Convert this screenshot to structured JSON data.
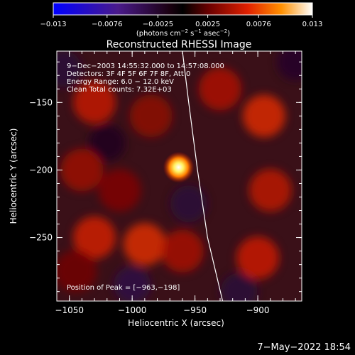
{
  "chart_data": {
    "type": "heatmap",
    "title": "Reconstructed RHESSI Image",
    "xlabel": "Heliocentric X (arcsec)",
    "ylabel": "Heliocentric Y (arcsec)",
    "xlim": [
      -1060,
      -865
    ],
    "ylim": [
      -297,
      -112
    ],
    "x_ticks": [
      -1050,
      -1000,
      -950,
      -900
    ],
    "x_tick_labels": [
      "−1050",
      "−1000",
      "−950",
      "−900"
    ],
    "y_ticks": [
      -150,
      -200,
      -250
    ],
    "y_tick_labels": [
      "−150",
      "−200",
      "−250"
    ],
    "colorbar": {
      "min": -0.013,
      "max": 0.013,
      "tick_values": [
        -0.013,
        -0.0076,
        -0.0025,
        0.0025,
        0.0076,
        0.013
      ],
      "tick_labels": [
        "−0.013",
        "−0.0076",
        "−0.0025",
        "0.0025",
        "0.0076",
        "0.013"
      ],
      "units_label": "(photons cm",
      "units_exp1": "−2",
      "units_mid": " s",
      "units_exp2": "−1",
      "units_end": " asec",
      "units_exp3": "−2",
      "units_close": ")"
    },
    "annotations": [
      "9−Dec−2003 14:55:32.000 to 14:57:08.000",
      "Detectors: 3F 4F 5F 6F 7F 8F, Att 0",
      "Energy Range: 6.0 − 12.0 keV",
      "Clean    Total counts: 7.32E+03"
    ],
    "peak_label": "Position of Peak = [−963,−198]",
    "peak": {
      "x": -963,
      "y": -198,
      "value": 0.013
    },
    "limb_curve": [
      {
        "x": -960,
        "y": -112
      },
      {
        "x": -955,
        "y": -150
      },
      {
        "x": -948,
        "y": -200
      },
      {
        "x": -940,
        "y": -250
      },
      {
        "x": -928,
        "y": -297
      }
    ],
    "background_blobs": [
      {
        "x": -1030,
        "y": -150,
        "value": 0.0058
      },
      {
        "x": -1040,
        "y": -200,
        "value": 0.0045
      },
      {
        "x": -1030,
        "y": -250,
        "value": 0.0062
      },
      {
        "x": -990,
        "y": -255,
        "value": 0.007
      },
      {
        "x": -985,
        "y": -160,
        "value": 0.004
      },
      {
        "x": -930,
        "y": -140,
        "value": 0.005
      },
      {
        "x": -895,
        "y": -160,
        "value": 0.0068
      },
      {
        "x": -890,
        "y": -215,
        "value": 0.0055
      },
      {
        "x": -900,
        "y": -265,
        "value": 0.006
      },
      {
        "x": -960,
        "y": -260,
        "value": 0.0048
      },
      {
        "x": -1045,
        "y": -275,
        "value": 0.003
      },
      {
        "x": -1010,
        "y": -215,
        "value": 0.0035
      }
    ],
    "negative_blobs": [
      {
        "x": -1055,
        "y": -125,
        "value": -0.003
      },
      {
        "x": -1000,
        "y": -285,
        "value": -0.0035
      },
      {
        "x": -915,
        "y": -290,
        "value": -0.003
      },
      {
        "x": -870,
        "y": -120,
        "value": -0.0025
      },
      {
        "x": -955,
        "y": -225,
        "value": -0.003
      },
      {
        "x": -1020,
        "y": -180,
        "value": -0.002
      }
    ]
  },
  "timestamp": "7−May−2022 18:54"
}
